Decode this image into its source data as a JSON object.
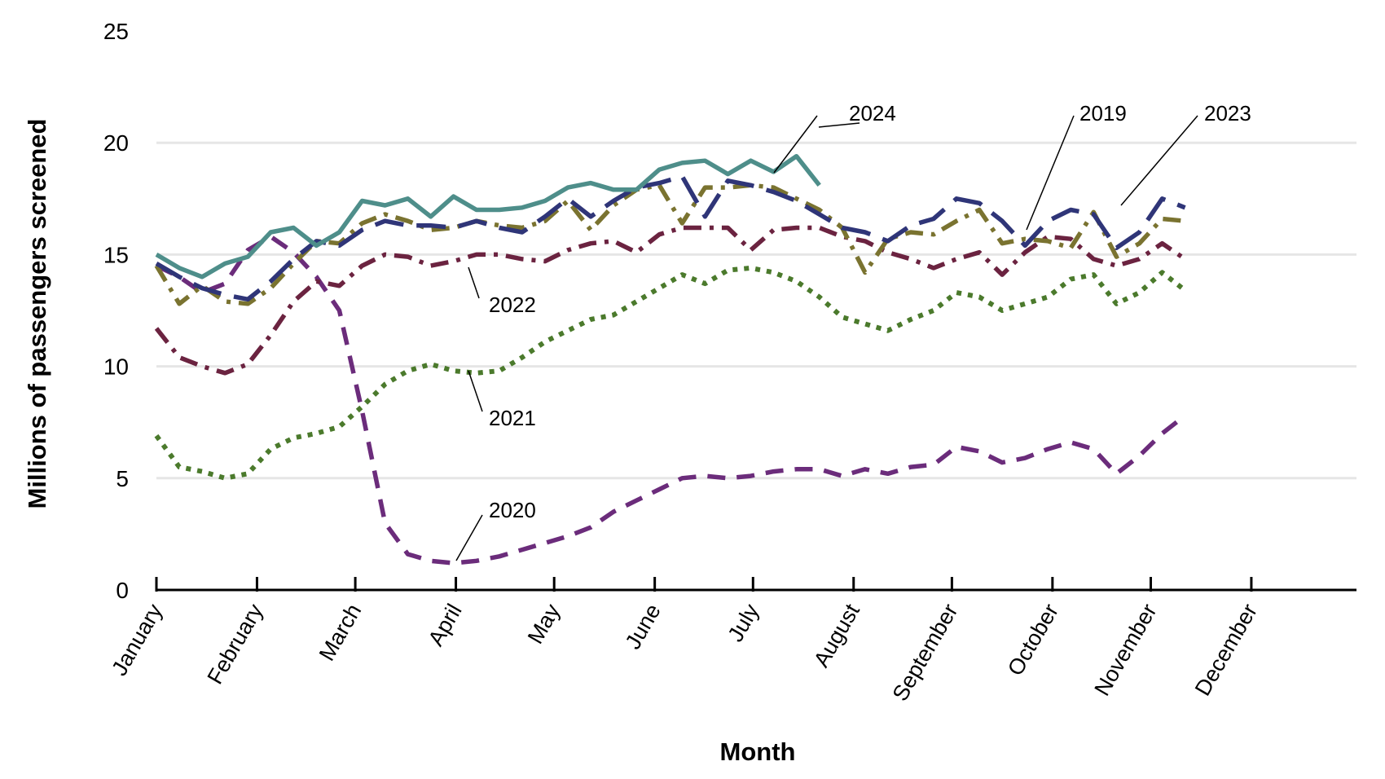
{
  "chart_data": {
    "type": "line",
    "xlabel": "Month",
    "ylabel": "Millions of passengers screened",
    "ylim": [
      0,
      25
    ],
    "yticks": [
      0,
      5,
      10,
      15,
      20,
      25
    ],
    "grid": "horizontal",
    "legend": "inline labels",
    "months": [
      "January",
      "February",
      "March",
      "April",
      "May",
      "June",
      "July",
      "August",
      "September",
      "October",
      "November",
      "December"
    ],
    "x_unit": "week of year (1-53)",
    "series": [
      {
        "name": "2019",
        "color": "#7a7330",
        "dash": "dash-dot",
        "points": [
          [
            1,
            14.5
          ],
          [
            2,
            12.8
          ],
          [
            3,
            13.6
          ],
          [
            4,
            12.9
          ],
          [
            5,
            12.8
          ],
          [
            6,
            13.5
          ],
          [
            7,
            14.6
          ],
          [
            8,
            15.6
          ],
          [
            9,
            15.5
          ],
          [
            10,
            16.4
          ],
          [
            11,
            16.8
          ],
          [
            12,
            16.5
          ],
          [
            13,
            16.1
          ],
          [
            14,
            16.2
          ],
          [
            15,
            16.5
          ],
          [
            16,
            16.3
          ],
          [
            17,
            16.2
          ],
          [
            18,
            16.5
          ],
          [
            19,
            17.4
          ],
          [
            20,
            16.1
          ],
          [
            21,
            17.2
          ],
          [
            22,
            17.9
          ],
          [
            23,
            18.1
          ],
          [
            24,
            16.4
          ],
          [
            25,
            18.0
          ],
          [
            26,
            18.0
          ],
          [
            27,
            18.1
          ],
          [
            28,
            18.0
          ],
          [
            29,
            17.5
          ],
          [
            30,
            17.0
          ],
          [
            31,
            16.2
          ],
          [
            32,
            14.2
          ],
          [
            33,
            15.7
          ],
          [
            34,
            16.0
          ],
          [
            35,
            15.9
          ],
          [
            36,
            16.5
          ],
          [
            37,
            17.0
          ],
          [
            38,
            15.5
          ],
          [
            39,
            15.7
          ],
          [
            40,
            15.6
          ],
          [
            41,
            15.3
          ],
          [
            42,
            16.9
          ],
          [
            43,
            14.9
          ],
          [
            44,
            15.5
          ],
          [
            45,
            16.6
          ],
          [
            46,
            16.5
          ]
        ]
      },
      {
        "name": "2020",
        "color": "#6b2c7b",
        "dash": "dash",
        "points": [
          [
            1,
            14.5
          ],
          [
            2,
            14.0
          ],
          [
            3,
            13.3
          ],
          [
            4,
            13.7
          ],
          [
            5,
            15.2
          ],
          [
            6,
            15.8
          ],
          [
            7,
            15.1
          ],
          [
            8,
            14.0
          ],
          [
            9,
            12.5
          ],
          [
            10,
            8.0
          ],
          [
            11,
            3.0
          ],
          [
            12,
            1.6
          ],
          [
            13,
            1.3
          ],
          [
            14,
            1.2
          ],
          [
            15,
            1.3
          ],
          [
            16,
            1.5
          ],
          [
            17,
            1.8
          ],
          [
            18,
            2.1
          ],
          [
            19,
            2.4
          ],
          [
            20,
            2.8
          ],
          [
            21,
            3.5
          ],
          [
            22,
            4.0
          ],
          [
            23,
            4.5
          ],
          [
            24,
            5.0
          ],
          [
            25,
            5.1
          ],
          [
            26,
            5.0
          ],
          [
            27,
            5.1
          ],
          [
            28,
            5.3
          ],
          [
            29,
            5.4
          ],
          [
            30,
            5.4
          ],
          [
            31,
            5.1
          ],
          [
            32,
            5.4
          ],
          [
            33,
            5.2
          ],
          [
            34,
            5.5
          ],
          [
            35,
            5.6
          ],
          [
            36,
            6.4
          ],
          [
            37,
            6.2
          ],
          [
            38,
            5.7
          ],
          [
            39,
            5.9
          ],
          [
            40,
            6.3
          ],
          [
            41,
            6.6
          ],
          [
            42,
            6.3
          ],
          [
            43,
            5.2
          ],
          [
            44,
            6.0
          ],
          [
            45,
            7.0
          ],
          [
            46,
            7.8
          ]
        ]
      },
      {
        "name": "2021",
        "color": "#4b7a2c",
        "dash": "dot",
        "points": [
          [
            1,
            6.9
          ],
          [
            2,
            5.5
          ],
          [
            3,
            5.3
          ],
          [
            4,
            5.0
          ],
          [
            5,
            5.2
          ],
          [
            6,
            6.3
          ],
          [
            7,
            6.8
          ],
          [
            8,
            7.0
          ],
          [
            9,
            7.3
          ],
          [
            10,
            8.2
          ],
          [
            11,
            9.2
          ],
          [
            12,
            9.8
          ],
          [
            13,
            10.1
          ],
          [
            14,
            9.8
          ],
          [
            15,
            9.7
          ],
          [
            16,
            9.8
          ],
          [
            17,
            10.4
          ],
          [
            18,
            11.1
          ],
          [
            19,
            11.6
          ],
          [
            20,
            12.1
          ],
          [
            21,
            12.3
          ],
          [
            22,
            12.9
          ],
          [
            23,
            13.5
          ],
          [
            24,
            14.1
          ],
          [
            25,
            13.7
          ],
          [
            26,
            14.3
          ],
          [
            27,
            14.4
          ],
          [
            28,
            14.2
          ],
          [
            29,
            13.8
          ],
          [
            30,
            13.1
          ],
          [
            31,
            12.2
          ],
          [
            32,
            11.9
          ],
          [
            33,
            11.6
          ],
          [
            34,
            12.1
          ],
          [
            35,
            12.5
          ],
          [
            36,
            13.3
          ],
          [
            37,
            13.1
          ],
          [
            38,
            12.5
          ],
          [
            39,
            12.8
          ],
          [
            40,
            13.1
          ],
          [
            41,
            13.9
          ],
          [
            42,
            14.1
          ],
          [
            43,
            12.8
          ],
          [
            44,
            13.3
          ],
          [
            45,
            14.2
          ],
          [
            46,
            13.4
          ]
        ]
      },
      {
        "name": "2022",
        "color": "#6b2340",
        "dash": "dash-dot",
        "points": [
          [
            1,
            11.7
          ],
          [
            2,
            10.4
          ],
          [
            3,
            10.0
          ],
          [
            4,
            9.7
          ],
          [
            5,
            10.1
          ],
          [
            6,
            11.4
          ],
          [
            7,
            12.9
          ],
          [
            8,
            13.8
          ],
          [
            9,
            13.6
          ],
          [
            10,
            14.5
          ],
          [
            11,
            15.0
          ],
          [
            12,
            14.9
          ],
          [
            13,
            14.5
          ],
          [
            14,
            14.7
          ],
          [
            15,
            15.0
          ],
          [
            16,
            15.0
          ],
          [
            17,
            14.8
          ],
          [
            18,
            14.7
          ],
          [
            19,
            15.2
          ],
          [
            20,
            15.5
          ],
          [
            21,
            15.6
          ],
          [
            22,
            15.1
          ],
          [
            23,
            15.9
          ],
          [
            24,
            16.2
          ],
          [
            25,
            16.2
          ],
          [
            26,
            16.2
          ],
          [
            27,
            15.2
          ],
          [
            28,
            16.1
          ],
          [
            29,
            16.2
          ],
          [
            30,
            16.2
          ],
          [
            31,
            15.8
          ],
          [
            32,
            15.6
          ],
          [
            33,
            15.1
          ],
          [
            34,
            14.8
          ],
          [
            35,
            14.4
          ],
          [
            36,
            14.8
          ],
          [
            37,
            15.1
          ],
          [
            38,
            14.1
          ],
          [
            39,
            15.1
          ],
          [
            40,
            15.8
          ],
          [
            41,
            15.7
          ],
          [
            42,
            14.8
          ],
          [
            43,
            14.5
          ],
          [
            44,
            14.8
          ],
          [
            45,
            15.5
          ],
          [
            46,
            14.8
          ]
        ]
      },
      {
        "name": "2023",
        "color": "#2f3578",
        "dash": "long-dash",
        "points": [
          [
            1,
            14.6
          ],
          [
            2,
            14.0
          ],
          [
            3,
            13.5
          ],
          [
            4,
            13.2
          ],
          [
            5,
            13.0
          ],
          [
            6,
            13.8
          ],
          [
            7,
            14.8
          ],
          [
            8,
            15.6
          ],
          [
            9,
            15.4
          ],
          [
            10,
            16.1
          ],
          [
            11,
            16.5
          ],
          [
            12,
            16.3
          ],
          [
            13,
            16.3
          ],
          [
            14,
            16.2
          ],
          [
            15,
            16.5
          ],
          [
            16,
            16.2
          ],
          [
            17,
            16.0
          ],
          [
            18,
            16.7
          ],
          [
            19,
            17.5
          ],
          [
            20,
            16.7
          ],
          [
            21,
            17.4
          ],
          [
            22,
            18.0
          ],
          [
            23,
            18.2
          ],
          [
            24,
            18.5
          ],
          [
            25,
            16.7
          ],
          [
            26,
            18.3
          ],
          [
            27,
            18.1
          ],
          [
            28,
            17.8
          ],
          [
            29,
            17.4
          ],
          [
            30,
            16.8
          ],
          [
            31,
            16.2
          ],
          [
            32,
            16.0
          ],
          [
            33,
            15.6
          ],
          [
            34,
            16.3
          ],
          [
            35,
            16.6
          ],
          [
            36,
            17.5
          ],
          [
            37,
            17.3
          ],
          [
            38,
            16.5
          ],
          [
            39,
            15.4
          ],
          [
            40,
            16.5
          ],
          [
            41,
            17.0
          ],
          [
            42,
            16.8
          ],
          [
            43,
            15.3
          ],
          [
            44,
            16.0
          ],
          [
            45,
            17.5
          ],
          [
            46,
            17.1
          ]
        ]
      },
      {
        "name": "2024",
        "color": "#4e8e8a",
        "dash": "solid",
        "points": [
          [
            1,
            15.0
          ],
          [
            2,
            14.4
          ],
          [
            3,
            14.0
          ],
          [
            4,
            14.6
          ],
          [
            5,
            14.9
          ],
          [
            6,
            16.0
          ],
          [
            7,
            16.2
          ],
          [
            8,
            15.4
          ],
          [
            9,
            16.0
          ],
          [
            10,
            17.4
          ],
          [
            11,
            17.2
          ],
          [
            12,
            17.5
          ],
          [
            13,
            16.7
          ],
          [
            14,
            17.6
          ],
          [
            15,
            17.0
          ],
          [
            16,
            17.0
          ],
          [
            17,
            17.1
          ],
          [
            18,
            17.4
          ],
          [
            19,
            18.0
          ],
          [
            20,
            18.2
          ],
          [
            21,
            17.9
          ],
          [
            22,
            17.9
          ],
          [
            23,
            18.8
          ],
          [
            24,
            19.1
          ],
          [
            25,
            19.2
          ],
          [
            26,
            18.6
          ],
          [
            27,
            19.2
          ],
          [
            28,
            18.7
          ],
          [
            29,
            19.4
          ],
          [
            30,
            18.1
          ]
        ]
      }
    ]
  },
  "labels": {
    "s2019": "2019",
    "s2020": "2020",
    "s2021": "2021",
    "s2022": "2022",
    "s2023": "2023",
    "s2024": "2024"
  }
}
